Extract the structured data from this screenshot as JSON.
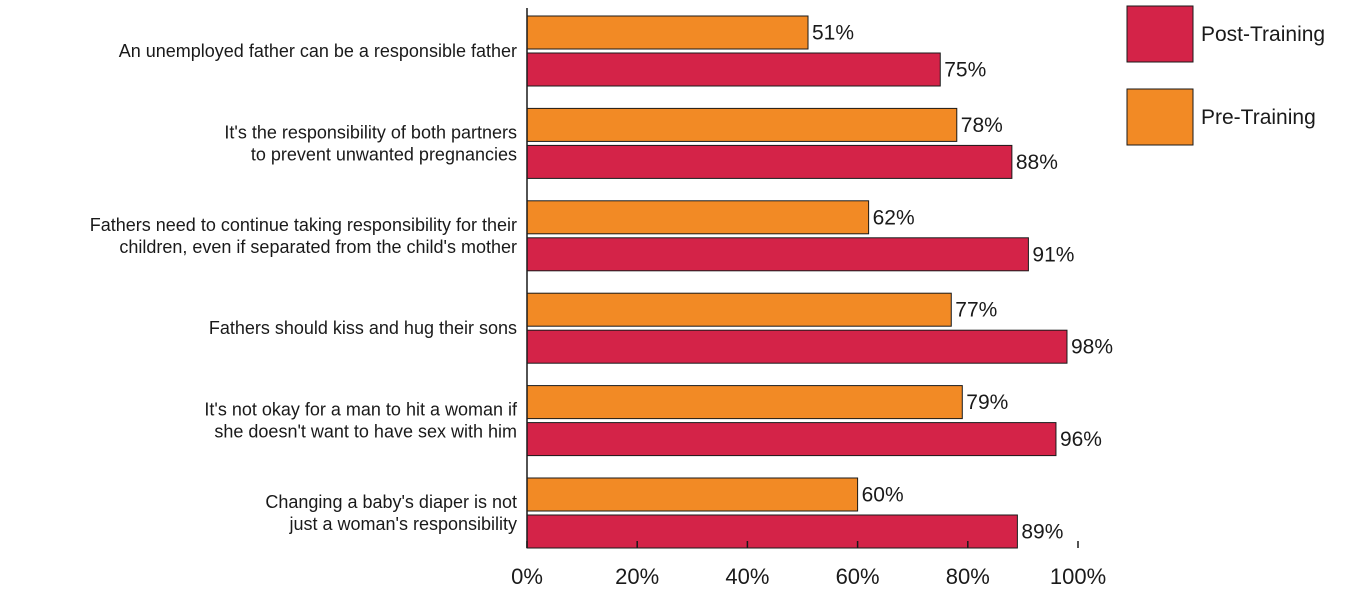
{
  "chart_data": {
    "type": "bar",
    "orientation": "horizontal",
    "categories": [
      [
        "An unemployed father can be a responsible father"
      ],
      [
        "It's the responsibility of both partners",
        "to prevent unwanted pregnancies"
      ],
      [
        "Fathers need to continue taking responsibility for their",
        "children, even if separated from the child's mother"
      ],
      [
        "Fathers should kiss and hug their sons"
      ],
      [
        "It's not okay for a man to hit a woman if",
        "she doesn't want to have sex with him"
      ],
      [
        "Changing a baby's diaper is not",
        "just a woman's responsibility"
      ]
    ],
    "series": [
      {
        "name": "Pre-Training",
        "color": "#f28a25",
        "values": [
          51,
          78,
          62,
          77,
          79,
          60
        ],
        "labels": [
          "51%",
          "78%",
          "62%",
          "77%",
          "79%",
          "60%"
        ]
      },
      {
        "name": "Post-Training",
        "color": "#d42348",
        "values": [
          75,
          88,
          91,
          98,
          96,
          89
        ],
        "labels": [
          "75%",
          "88%",
          "91%",
          "98%",
          "96%",
          "89%"
        ]
      }
    ],
    "xlim": [
      0,
      100
    ],
    "xticks": [
      "0%",
      "20%",
      "40%",
      "60%",
      "80%",
      "100%"
    ],
    "grid": false,
    "legend_position": "top-right",
    "legend_order": [
      "Post-Training",
      "Pre-Training"
    ]
  }
}
